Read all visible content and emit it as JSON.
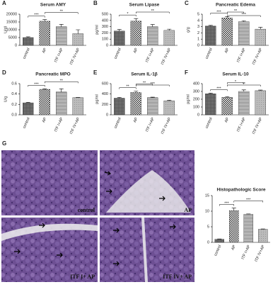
{
  "chart_data": [
    {
      "type": "bar",
      "panel": "A",
      "title": "Serum AMY",
      "ylabel": "U/dl",
      "categories": [
        "control",
        "AP",
        "ITF I+AP",
        "ITF IV+AP"
      ],
      "values": [
        5000,
        15500,
        12000,
        7500
      ],
      "errors": [
        500,
        1000,
        1500,
        2500
      ],
      "ylim": [
        0,
        20000
      ],
      "yticks": [
        0,
        5000,
        10000,
        15000,
        20000
      ],
      "significance": [
        {
          "pair": [
            "control",
            "AP"
          ],
          "label": "***"
        },
        {
          "pair": [
            "AP",
            "ITF IV+AP"
          ],
          "label": "**"
        }
      ]
    },
    {
      "type": "bar",
      "panel": "B",
      "title": "Serum Lipase",
      "ylabel": "pg/ml",
      "categories": [
        "control",
        "AP",
        "ITF I+AP",
        "ITF IV+AP"
      ],
      "values": [
        230,
        390,
        300,
        240
      ],
      "errors": [
        25,
        40,
        35,
        20
      ],
      "ylim": [
        0,
        500
      ],
      "yticks": [
        0,
        100,
        200,
        300,
        400,
        500
      ],
      "significance": [
        {
          "pair": [
            "control",
            "AP"
          ],
          "label": "*"
        },
        {
          "pair": [
            "AP",
            "ITF IV+AP"
          ],
          "label": "**"
        }
      ]
    },
    {
      "type": "bar",
      "panel": "C",
      "title": "Pancreatic Edema",
      "ylabel": "g/g",
      "categories": [
        "control",
        "AP",
        "ITF I+AP",
        "ITF IV+AP"
      ],
      "values": [
        3.1,
        4.4,
        3.8,
        2.6
      ],
      "errors": [
        0.1,
        0.2,
        0.15,
        0.3
      ],
      "ylim": [
        0,
        5
      ],
      "yticks": [
        0,
        1,
        2,
        3,
        4,
        5
      ],
      "significance": [
        {
          "pair": [
            "control",
            "AP"
          ],
          "label": "***"
        },
        {
          "pair": [
            "AP",
            "ITF I+AP"
          ],
          "label": "**"
        },
        {
          "pair": [
            "AP",
            "ITF IV+AP"
          ],
          "label": "***"
        }
      ]
    },
    {
      "type": "bar",
      "panel": "D",
      "title": "Pancreatic MPO",
      "ylabel": "U/g",
      "categories": [
        "control",
        "AP",
        "ITF I+AP",
        "ITF IV+AP"
      ],
      "values": [
        0.23,
        0.49,
        0.44,
        0.33
      ],
      "errors": [
        0.01,
        0.01,
        0.06,
        0.005
      ],
      "ylim": [
        0,
        0.6
      ],
      "yticks": [
        {
          "value": 0,
          "label": "0.0"
        },
        0.2,
        0.4,
        0.6
      ],
      "significance": [
        {
          "pair": [
            "control",
            "AP"
          ],
          "label": "***"
        },
        {
          "pair": [
            "AP",
            "ITF IV+AP"
          ],
          "label": "**"
        }
      ]
    },
    {
      "type": "bar",
      "panel": "E",
      "title": "Serum IL-1β",
      "ylabel": "pg/ml",
      "categories": [
        "control",
        "AP",
        "ITF I+AP",
        "ITF IV+AP"
      ],
      "values": [
        320,
        430,
        330,
        270
      ],
      "errors": [
        15,
        25,
        10,
        10
      ],
      "ylim": [
        0,
        600
      ],
      "yticks": [
        0,
        200,
        400,
        600
      ],
      "significance": [
        {
          "pair": [
            "control",
            "AP"
          ],
          "label": "**"
        },
        {
          "pair": [
            "AP",
            "ITF I+AP"
          ],
          "label": "**"
        },
        {
          "pair": [
            "AP",
            "ITF IV+AP"
          ],
          "label": "***"
        }
      ]
    },
    {
      "type": "bar",
      "panel": "F",
      "title": "Serum IL-10",
      "ylabel": "pg/ml",
      "categories": [
        "control",
        "AP",
        "ITF I+AP",
        "ITF IV+AP"
      ],
      "values": [
        270,
        225,
        300,
        310
      ],
      "errors": [
        8,
        8,
        20,
        8
      ],
      "ylim": [
        0,
        400
      ],
      "yticks": [
        0,
        100,
        200,
        300,
        400
      ],
      "significance": [
        {
          "pair": [
            "control",
            "AP"
          ],
          "label": "***"
        },
        {
          "pair": [
            "AP",
            "ITF I+AP"
          ],
          "label": "*"
        },
        {
          "pair": [
            "AP",
            "ITF IV+AP"
          ],
          "label": "**"
        }
      ]
    },
    {
      "type": "bar",
      "panel": "G",
      "title": "Histopathologic Score",
      "categories": [
        "control",
        "AP",
        "ITF I+AP",
        "ITF IV+AP"
      ],
      "values": [
        1,
        10.2,
        9,
        4.2
      ],
      "errors": [
        0.1,
        0.8,
        0.1,
        0.1
      ],
      "ylim": [
        0,
        15
      ],
      "yticks": [
        0,
        5,
        10,
        15
      ],
      "significance": [
        {
          "pair": [
            "control",
            "AP"
          ],
          "label": "***"
        },
        {
          "pair": [
            "AP",
            "ITF IV+AP"
          ],
          "label": "***"
        }
      ]
    }
  ],
  "images": [
    {
      "label": "control"
    },
    {
      "label": "AP"
    },
    {
      "label": "ITF I+ AP"
    },
    {
      "label": "ITF IV+ AP"
    }
  ]
}
